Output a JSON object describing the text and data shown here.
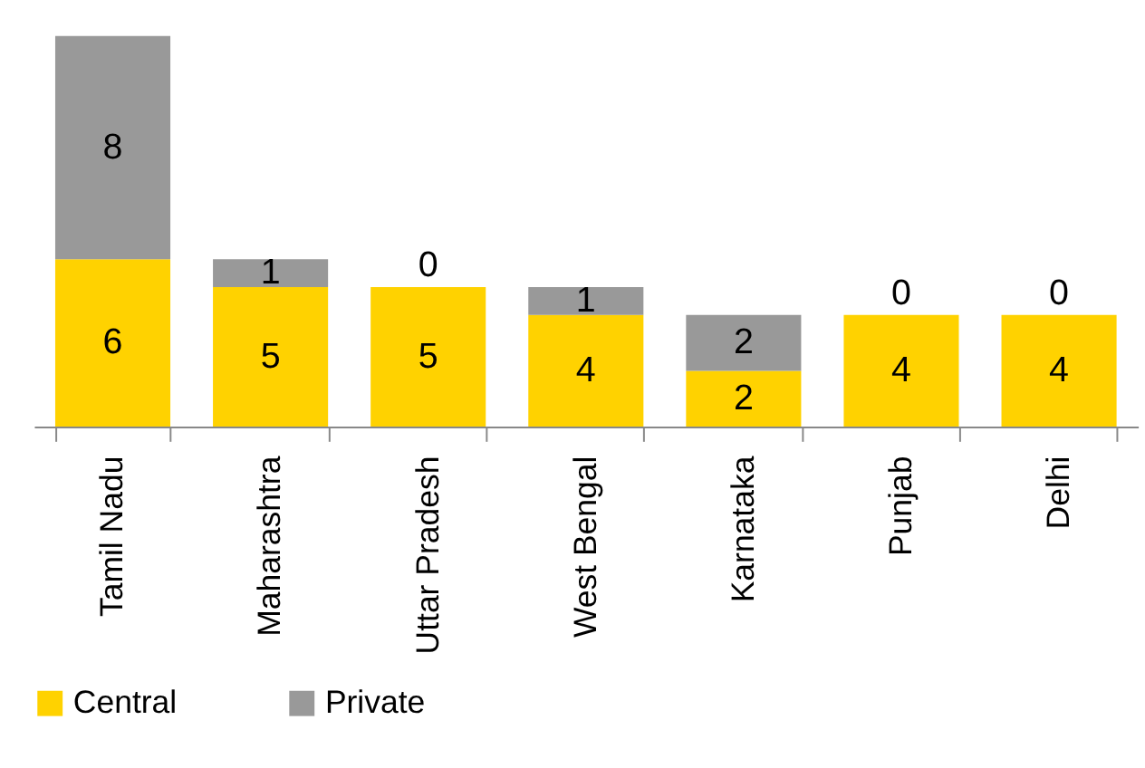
{
  "chart_data": {
    "type": "bar",
    "stacked": true,
    "categories": [
      "Tamil Nadu",
      "Maharashtra",
      "Uttar Pradesh",
      "West Bengal",
      "Karnataka",
      "Punjab",
      "Delhi"
    ],
    "series": [
      {
        "name": "Central",
        "color": "#ffd200",
        "values": [
          6,
          5,
          5,
          4,
          2,
          4,
          4
        ]
      },
      {
        "name": "Private",
        "color": "#999999",
        "values": [
          8,
          1,
          0,
          1,
          2,
          0,
          0
        ]
      }
    ],
    "data_labels": true,
    "legend": "bottom",
    "grid": false
  }
}
